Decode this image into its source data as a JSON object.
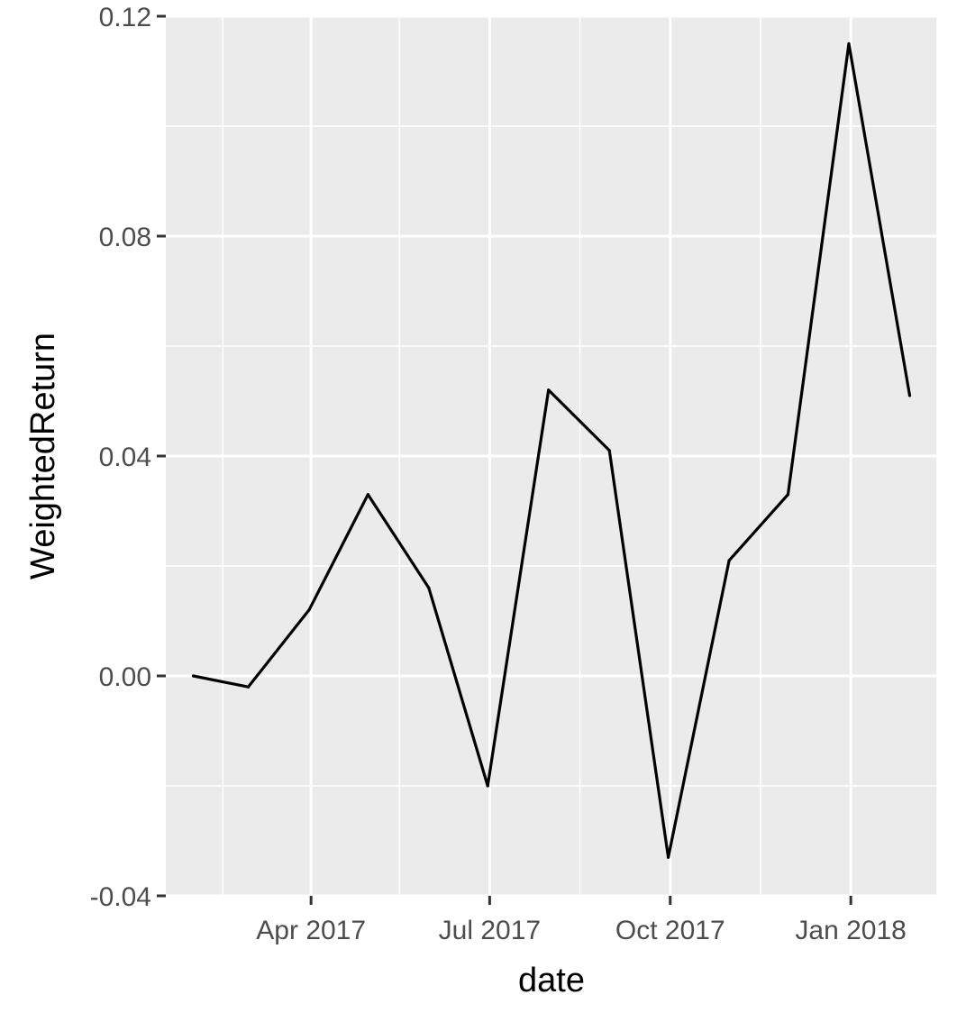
{
  "chart_data": {
    "type": "line",
    "title": "",
    "xlabel": "date",
    "ylabel": "WeightedReturn",
    "x": [
      "2017-01-31",
      "2017-02-28",
      "2017-03-31",
      "2017-04-30",
      "2017-05-31",
      "2017-06-30",
      "2017-07-31",
      "2017-08-31",
      "2017-09-30",
      "2017-10-31",
      "2017-11-30",
      "2017-12-31",
      "2018-01-31"
    ],
    "series": [
      {
        "values": [
          0.0,
          -0.002,
          0.012,
          0.033,
          0.016,
          -0.02,
          0.052,
          0.041,
          -0.033,
          0.021,
          0.033,
          0.115,
          0.051
        ]
      }
    ],
    "xlim": [
      "2017-01-17",
      "2018-02-14"
    ],
    "ylim": [
      -0.04,
      0.12
    ],
    "x_ticks": [
      {
        "date": "2017-04-01",
        "label": "Apr 2017"
      },
      {
        "date": "2017-07-01",
        "label": "Jul 2017"
      },
      {
        "date": "2017-10-01",
        "label": "Oct 2017"
      },
      {
        "date": "2018-01-01",
        "label": "Jan 2018"
      }
    ],
    "x_minor_ticks": [
      "2017-02-15",
      "2017-05-16",
      "2017-08-16",
      "2017-11-16",
      "2018-02-14"
    ],
    "y_ticks": [
      {
        "value": -0.04,
        "label": "-0.04"
      },
      {
        "value": 0.0,
        "label": "0.00"
      },
      {
        "value": 0.04,
        "label": "0.04"
      },
      {
        "value": 0.08,
        "label": "0.08"
      },
      {
        "value": 0.12,
        "label": "0.12"
      }
    ],
    "y_minor_ticks": [
      -0.02,
      0.02,
      0.06,
      0.1
    ],
    "grid": true,
    "legend": "none",
    "colors": {
      "panel": "#ebebeb",
      "grid": "#ffffff",
      "line": "#000000",
      "tick": "#333333"
    }
  }
}
